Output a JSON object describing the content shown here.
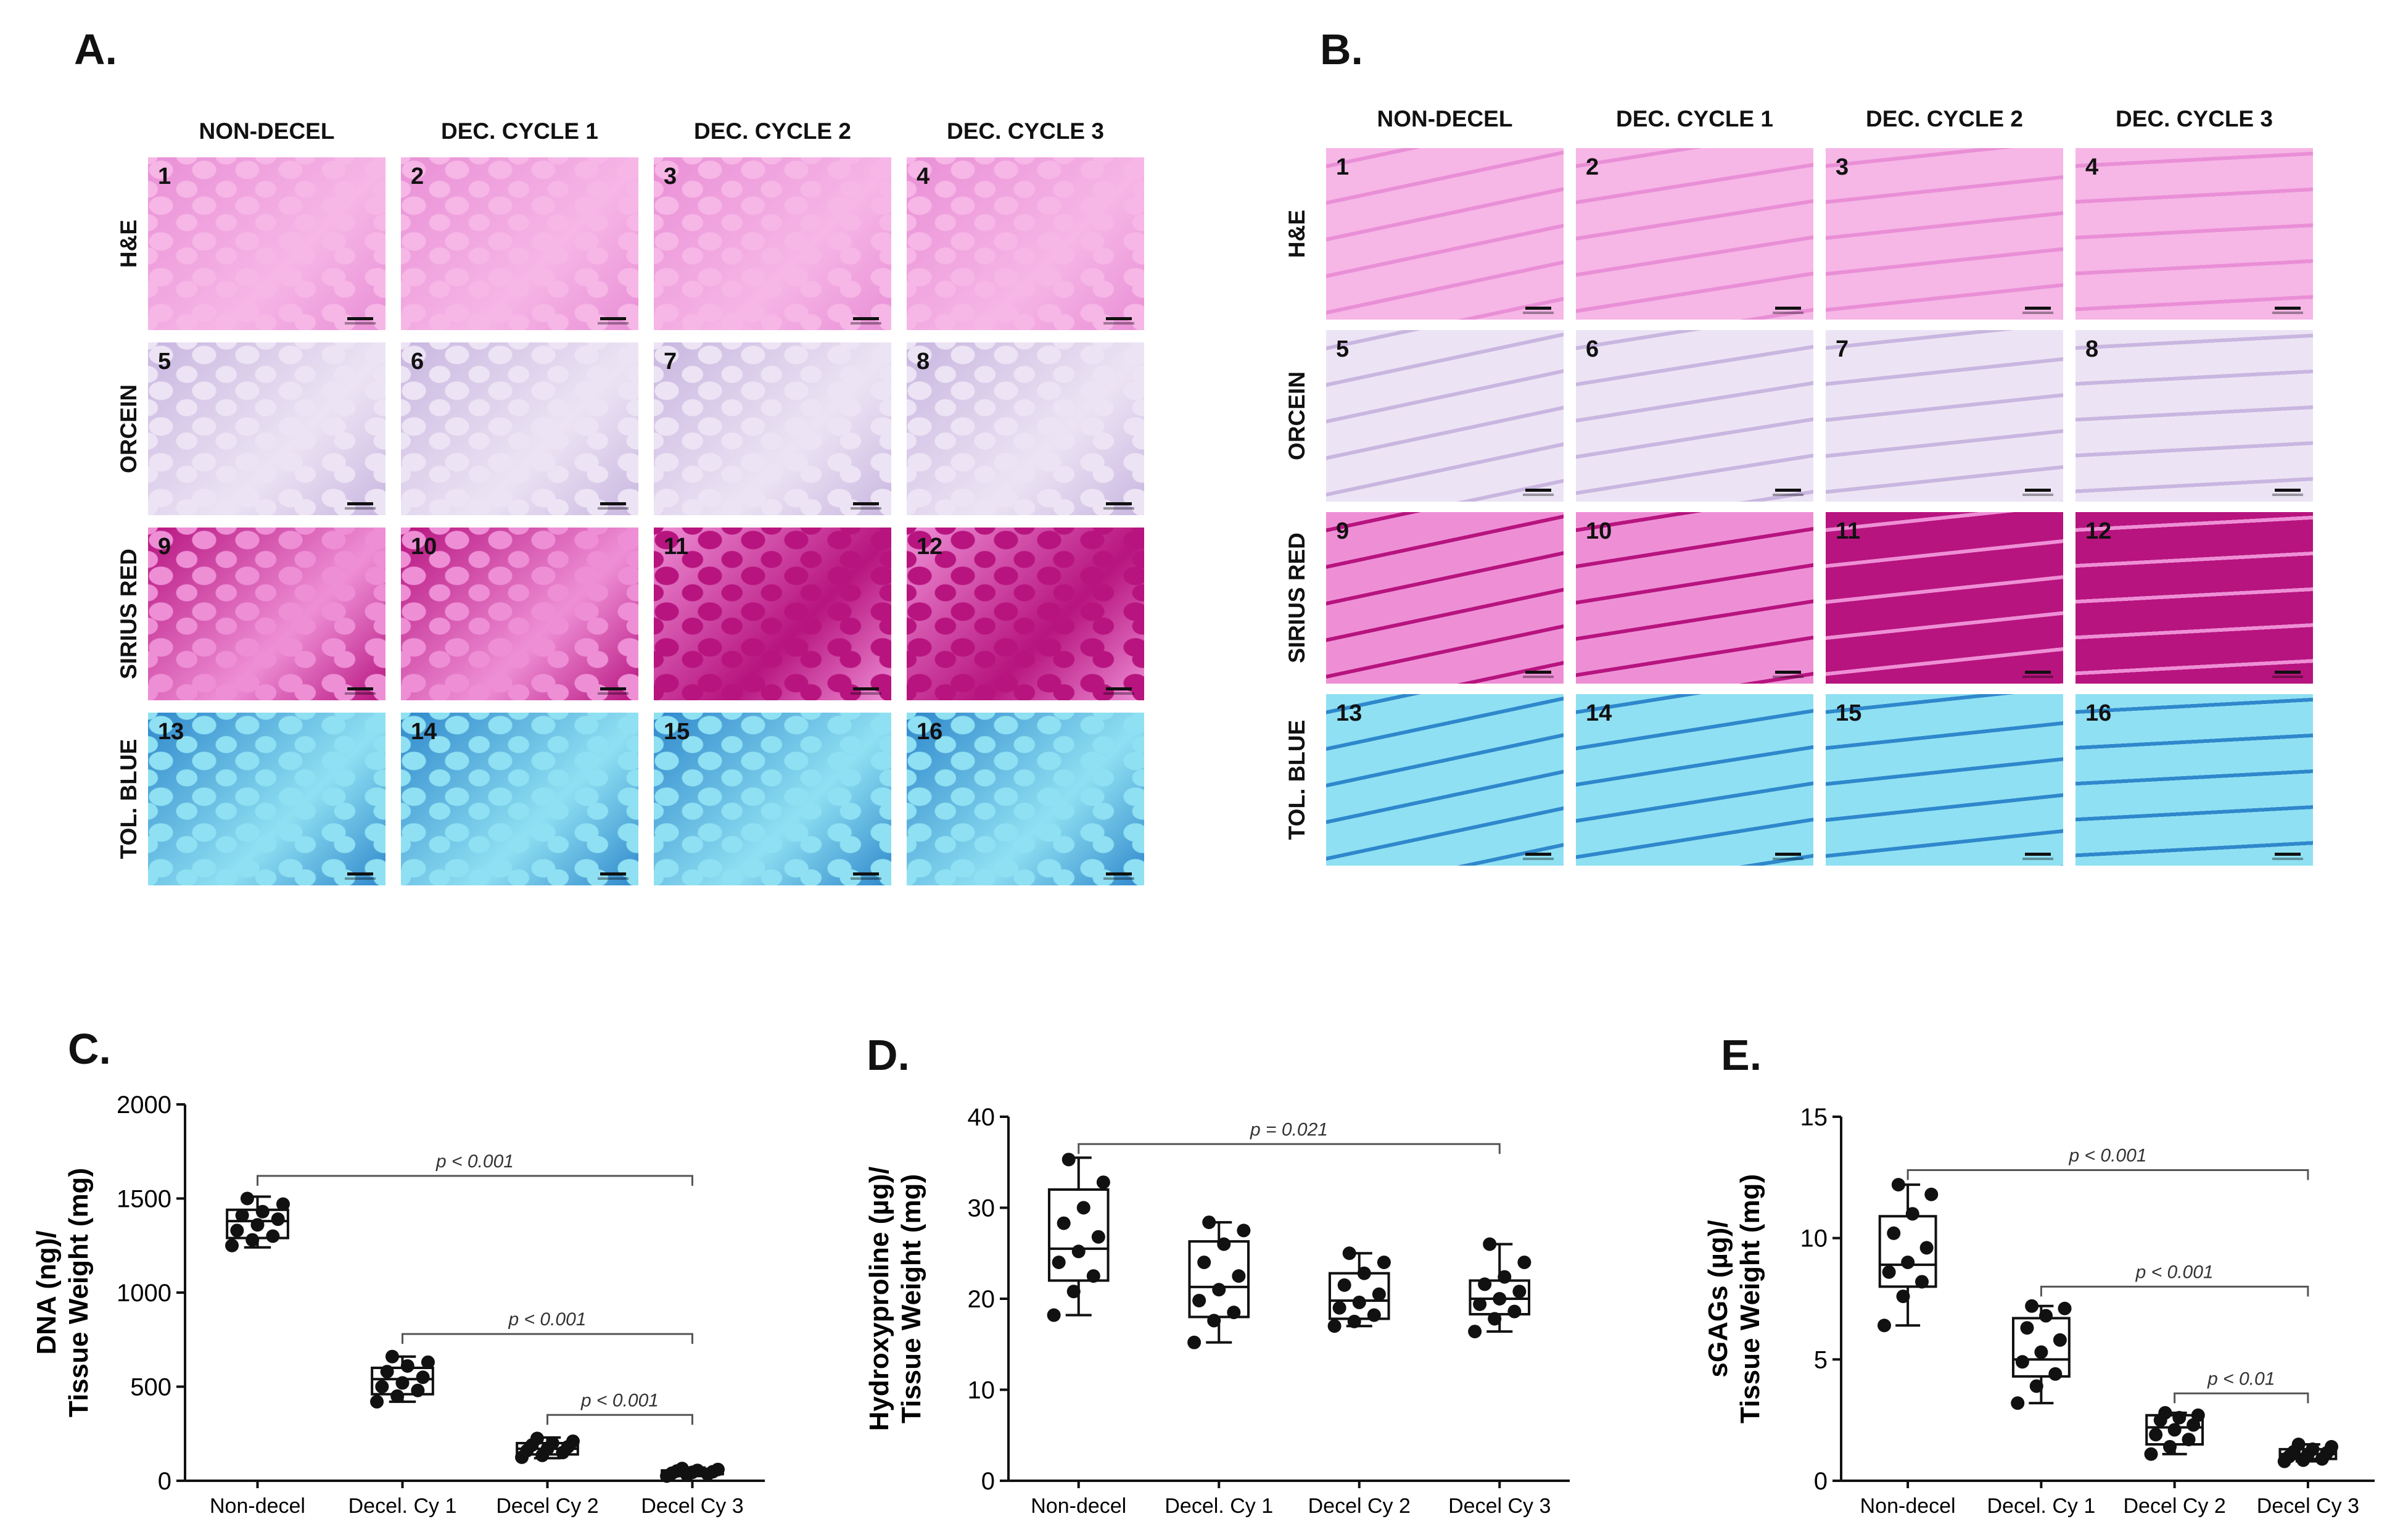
{
  "panel_labels": [
    "A.",
    "B.",
    "C.",
    "D.",
    "E."
  ],
  "histology": {
    "columns": [
      "NON-DECEL",
      "DEC. CYCLE 1",
      "DEC. CYCLE 2",
      "DEC. CYCLE 3"
    ],
    "rows": [
      "H&E",
      "ORCEIN",
      "SIRIUS RED",
      "TOL. BLUE"
    ],
    "tile_numbers": [
      "1",
      "2",
      "3",
      "4",
      "5",
      "6",
      "7",
      "8",
      "9",
      "10",
      "11",
      "12",
      "13",
      "14",
      "15",
      "16"
    ],
    "stain_colors": {
      "he": [
        "#f6b6e6",
        "#e98fd6"
      ],
      "orcein": [
        "#ece4f4",
        "#c9b6e0"
      ],
      "sirius": [
        "#ee8fd6",
        "#b7147f"
      ],
      "toluidine": [
        "#8fe0f2",
        "#2f88cc"
      ]
    }
  },
  "chart_data": [
    {
      "type": "box",
      "panel": "C.",
      "ylabel_lines": [
        "DNA (ng)/",
        "Tissue Weight (mg)"
      ],
      "categories": [
        "Non-decel",
        "Decel. Cy 1",
        "Decel Cy 2",
        "Decel Cy 3"
      ],
      "ylim": [
        0,
        2000
      ],
      "yticks": [
        "0",
        "500",
        "1000",
        "1500",
        "2000"
      ],
      "boxes": [
        {
          "min": 1240,
          "q1": 1290,
          "median": 1380,
          "q3": 1440,
          "max": 1510
        },
        {
          "min": 420,
          "q1": 460,
          "median": 540,
          "q3": 600,
          "max": 660
        },
        {
          "min": 120,
          "q1": 140,
          "median": 170,
          "q3": 200,
          "max": 230
        },
        {
          "min": 25,
          "q1": 35,
          "median": 45,
          "q3": 55,
          "max": 70
        }
      ],
      "points": [
        [
          1250,
          1280,
          1300,
          1330,
          1360,
          1390,
          1410,
          1430,
          1470,
          1500
        ],
        [
          420,
          450,
          480,
          500,
          520,
          550,
          580,
          610,
          630,
          660
        ],
        [
          125,
          135,
          150,
          160,
          170,
          180,
          190,
          200,
          210,
          225
        ],
        [
          25,
          30,
          35,
          40,
          45,
          48,
          52,
          55,
          60,
          65
        ]
      ],
      "brackets": [
        {
          "from": 0,
          "to": 3,
          "y": 1620,
          "label": "p < 0.001"
        },
        {
          "from": 1,
          "to": 3,
          "y": 780,
          "label": "p < 0.001"
        },
        {
          "from": 2,
          "to": 3,
          "y": 350,
          "label": "p < 0.001"
        }
      ]
    },
    {
      "type": "box",
      "panel": "D.",
      "ylabel_lines": [
        "Hydroxyproline (µg)/",
        "Tissue Weight (mg)"
      ],
      "categories": [
        "Non-decel",
        "Decel. Cy 1",
        "Decel Cy 2",
        "Decel Cy 3"
      ],
      "ylim": [
        0,
        40
      ],
      "yticks": [
        "0",
        "10",
        "20",
        "30",
        "40"
      ],
      "boxes": [
        {
          "min": 18.2,
          "q1": 22.0,
          "median": 25.5,
          "q3": 32.0,
          "max": 35.5
        },
        {
          "min": 15.2,
          "q1": 18.0,
          "median": 21.3,
          "q3": 26.3,
          "max": 28.4
        },
        {
          "min": 17.0,
          "q1": 17.8,
          "median": 19.8,
          "q3": 22.8,
          "max": 25.0
        },
        {
          "min": 16.4,
          "q1": 18.3,
          "median": 20.0,
          "q3": 22.0,
          "max": 26.0
        }
      ],
      "points": [
        [
          18.2,
          20.8,
          22.5,
          24.0,
          25.2,
          26.8,
          28.3,
          30.0,
          32.8,
          35.3
        ],
        [
          15.2,
          17.6,
          18.5,
          19.8,
          21.0,
          22.5,
          24.0,
          26.0,
          27.5,
          28.4
        ],
        [
          17.0,
          17.5,
          18.2,
          19.0,
          19.6,
          20.5,
          21.5,
          22.8,
          24.0,
          25.0
        ],
        [
          16.4,
          17.8,
          18.6,
          19.4,
          20.0,
          20.8,
          21.6,
          22.4,
          24.0,
          26.0
        ]
      ],
      "brackets": [
        {
          "from": 0,
          "to": 3,
          "y": 37.0,
          "label": "p = 0.021"
        }
      ]
    },
    {
      "type": "box",
      "panel": "E.",
      "ylabel_lines": [
        "sGAGs (µg)/",
        "Tissue Weight (mg)"
      ],
      "categories": [
        "Non-decel",
        "Decel. Cy 1",
        "Decel Cy 2",
        "Decel Cy 3"
      ],
      "ylim": [
        0,
        15
      ],
      "yticks": [
        "0",
        "5",
        "10",
        "15"
      ],
      "boxes": [
        {
          "min": 6.4,
          "q1": 8.0,
          "median": 8.9,
          "q3": 10.9,
          "max": 12.2
        },
        {
          "min": 3.2,
          "q1": 4.3,
          "median": 5.0,
          "q3": 6.7,
          "max": 7.2
        },
        {
          "min": 1.1,
          "q1": 1.5,
          "median": 2.2,
          "q3": 2.7,
          "max": 2.8
        },
        {
          "min": 0.8,
          "q1": 0.9,
          "median": 1.1,
          "q3": 1.3,
          "max": 1.5
        }
      ],
      "points": [
        [
          6.4,
          7.6,
          8.2,
          8.6,
          9.0,
          9.6,
          10.2,
          11.0,
          11.8,
          12.2
        ],
        [
          3.2,
          3.9,
          4.4,
          4.9,
          5.3,
          5.8,
          6.3,
          6.8,
          7.1,
          7.2
        ],
        [
          1.1,
          1.4,
          1.7,
          1.9,
          2.1,
          2.3,
          2.5,
          2.6,
          2.7,
          2.8
        ],
        [
          0.8,
          0.85,
          0.9,
          1.0,
          1.1,
          1.15,
          1.2,
          1.3,
          1.4,
          1.5
        ]
      ],
      "brackets": [
        {
          "from": 0,
          "to": 3,
          "y": 12.8,
          "label": "p < 0.001"
        },
        {
          "from": 1,
          "to": 3,
          "y": 8.0,
          "label": "p < 0.001"
        },
        {
          "from": 2,
          "to": 3,
          "y": 3.6,
          "label": "p < 0.01"
        }
      ]
    }
  ]
}
